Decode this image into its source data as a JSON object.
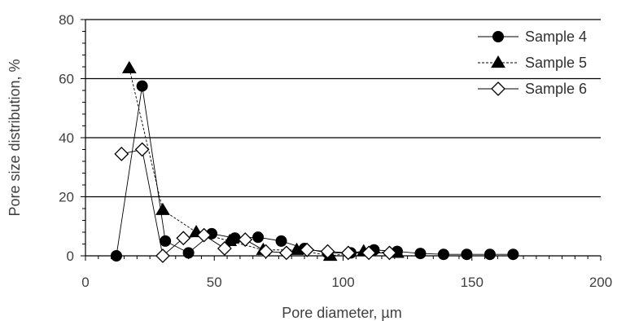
{
  "chart_data": {
    "type": "line",
    "xlabel": "Pore diameter, µm",
    "ylabel": "Pore size distribution, %",
    "xlim": [
      0,
      200
    ],
    "ylim": [
      0,
      80
    ],
    "xticks": [
      0,
      50,
      100,
      150,
      200
    ],
    "yticks": [
      0,
      20,
      40,
      60,
      80
    ],
    "grid": "horizontal major gridlines",
    "legend": "top-right",
    "series": [
      {
        "name": "Sample 4",
        "marker": "filled-circle",
        "line": "solid",
        "color": "#000000",
        "x": [
          12,
          22,
          31,
          40,
          49,
          58,
          67,
          76,
          85,
          94,
          103,
          112,
          121,
          130,
          139,
          148,
          157,
          166
        ],
        "y": [
          0,
          57.5,
          5,
          1,
          7.5,
          6,
          6.3,
          5,
          2.5,
          1,
          1,
          2,
          1.5,
          0.8,
          0.5,
          0.5,
          0.5,
          0.5
        ]
      },
      {
        "name": "Sample 5",
        "marker": "filled-triangle",
        "line": "dashed",
        "color": "#000000",
        "x": [
          17,
          30,
          43,
          56,
          69,
          82,
          95,
          108,
          121
        ],
        "y": [
          63.5,
          15.5,
          8,
          5,
          2,
          2,
          0,
          1.5,
          1
        ]
      },
      {
        "name": "Sample 6",
        "marker": "open-diamond",
        "line": "solid",
        "color": "#000000",
        "x": [
          14,
          22,
          30,
          38,
          46,
          54,
          62,
          70,
          78,
          86,
          94,
          102,
          110,
          118
        ],
        "y": [
          34.5,
          36,
          0,
          6,
          7,
          2.5,
          5.5,
          1.5,
          1,
          2,
          1.5,
          1,
          1,
          1
        ]
      }
    ]
  }
}
